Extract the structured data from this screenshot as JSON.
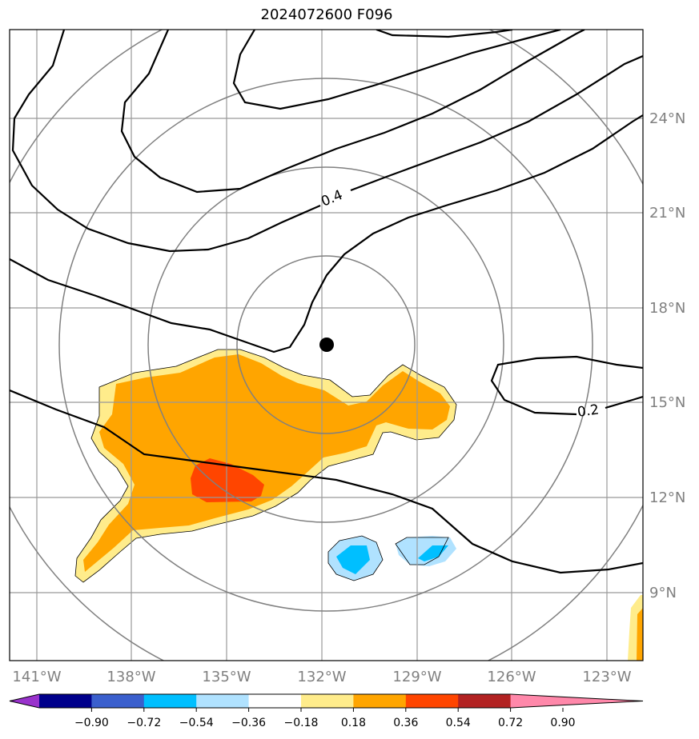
{
  "title": "2024072600 F096",
  "map": {
    "lat_labels": [
      "24°N",
      "21°N",
      "18°N",
      "15°N",
      "12°N",
      "9°N"
    ],
    "lon_labels": [
      "141°W",
      "138°W",
      "135°W",
      "132°W",
      "129°W",
      "126°W",
      "123°W"
    ],
    "contour_labels": [
      "0.4",
      "0.2"
    ],
    "grid_color": "#999999",
    "ring_color": "#808080"
  },
  "colorbar": {
    "labels": [
      "−0.90",
      "−0.72",
      "−0.54",
      "−0.36",
      "−0.18",
      "0.18",
      "0.36",
      "0.54",
      "0.72",
      "0.90"
    ],
    "colors": [
      "#9932CC",
      "#00008B",
      "#3A5FCD",
      "#00BFFF",
      "#B0E2FF",
      "#FFFFFF",
      "#FFEC8B",
      "#FFA500",
      "#FF4500",
      "#B22222",
      "#FF88AA"
    ]
  }
}
